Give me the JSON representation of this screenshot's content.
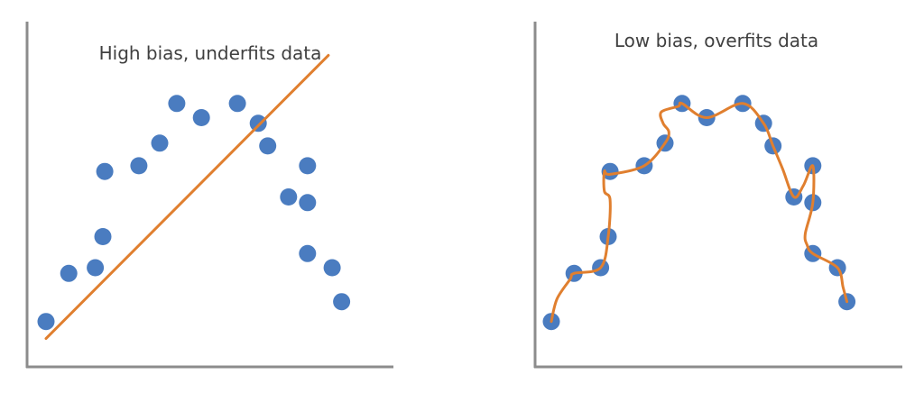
{
  "chart_data": [
    {
      "type": "scatter",
      "title": "High bias, underfits data",
      "axis_color": "#8c8c8c",
      "point_color": "#4a7cc0",
      "fit_color": "#e07f2f",
      "grid": false,
      "xlim": [
        0,
        18
      ],
      "ylim": [
        0,
        12
      ],
      "points": [
        {
          "x": 1.0,
          "y": 1.6
        },
        {
          "x": 2.2,
          "y": 3.3
        },
        {
          "x": 3.6,
          "y": 3.5
        },
        {
          "x": 4.0,
          "y": 4.6
        },
        {
          "x": 4.1,
          "y": 6.9
        },
        {
          "x": 5.9,
          "y": 7.1
        },
        {
          "x": 7.0,
          "y": 7.9
        },
        {
          "x": 7.9,
          "y": 9.3
        },
        {
          "x": 9.2,
          "y": 8.8
        },
        {
          "x": 11.1,
          "y": 9.3
        },
        {
          "x": 12.2,
          "y": 8.6
        },
        {
          "x": 12.7,
          "y": 7.8
        },
        {
          "x": 13.8,
          "y": 6.0
        },
        {
          "x": 14.8,
          "y": 7.1
        },
        {
          "x": 14.8,
          "y": 5.8
        },
        {
          "x": 14.8,
          "y": 4.0
        },
        {
          "x": 16.1,
          "y": 3.5
        },
        {
          "x": 16.6,
          "y": 2.3
        }
      ],
      "fit": {
        "kind": "linear",
        "x": [
          1.0,
          15.9
        ],
        "y": [
          1.0,
          11.0
        ]
      }
    },
    {
      "type": "scatter",
      "title": "Low bias, overfits data",
      "axis_color": "#8c8c8c",
      "point_color": "#4a7cc0",
      "fit_color": "#e07f2f",
      "grid": false,
      "xlim": [
        0,
        18
      ],
      "ylim": [
        0,
        12
      ],
      "points": [
        {
          "x": 1.0,
          "y": 1.6
        },
        {
          "x": 2.2,
          "y": 3.3
        },
        {
          "x": 3.6,
          "y": 3.5
        },
        {
          "x": 4.0,
          "y": 4.6
        },
        {
          "x": 4.1,
          "y": 6.9
        },
        {
          "x": 5.9,
          "y": 7.1
        },
        {
          "x": 7.0,
          "y": 7.9
        },
        {
          "x": 7.9,
          "y": 9.3
        },
        {
          "x": 9.2,
          "y": 8.8
        },
        {
          "x": 11.1,
          "y": 9.3
        },
        {
          "x": 12.2,
          "y": 8.6
        },
        {
          "x": 12.7,
          "y": 7.8
        },
        {
          "x": 13.8,
          "y": 6.0
        },
        {
          "x": 14.8,
          "y": 7.1
        },
        {
          "x": 14.8,
          "y": 5.8
        },
        {
          "x": 14.8,
          "y": 4.0
        },
        {
          "x": 16.1,
          "y": 3.5
        },
        {
          "x": 16.6,
          "y": 2.3
        }
      ],
      "fit": {
        "kind": "interpolating-curve",
        "x": [
          1.0,
          1.3,
          2.0,
          2.2,
          3.6,
          4.0,
          4.1,
          3.8,
          3.8,
          4.1,
          5.9,
          7.0,
          7.2,
          6.9,
          6.8,
          7.7,
          7.9,
          9.2,
          11.1,
          12.2,
          12.7,
          13.2,
          13.8,
          14.3,
          14.8,
          14.8,
          14.4,
          14.5,
          14.8,
          16.1,
          16.4,
          16.6
        ],
        "y": [
          1.6,
          2.4,
          3.1,
          3.3,
          3.5,
          4.6,
          5.9,
          6.2,
          6.9,
          6.8,
          7.1,
          7.9,
          8.3,
          8.6,
          9.0,
          9.2,
          9.3,
          8.8,
          9.3,
          8.6,
          7.8,
          7.0,
          6.0,
          6.4,
          7.1,
          5.8,
          4.7,
          4.3,
          4.0,
          3.5,
          2.8,
          2.3
        ]
      }
    }
  ]
}
